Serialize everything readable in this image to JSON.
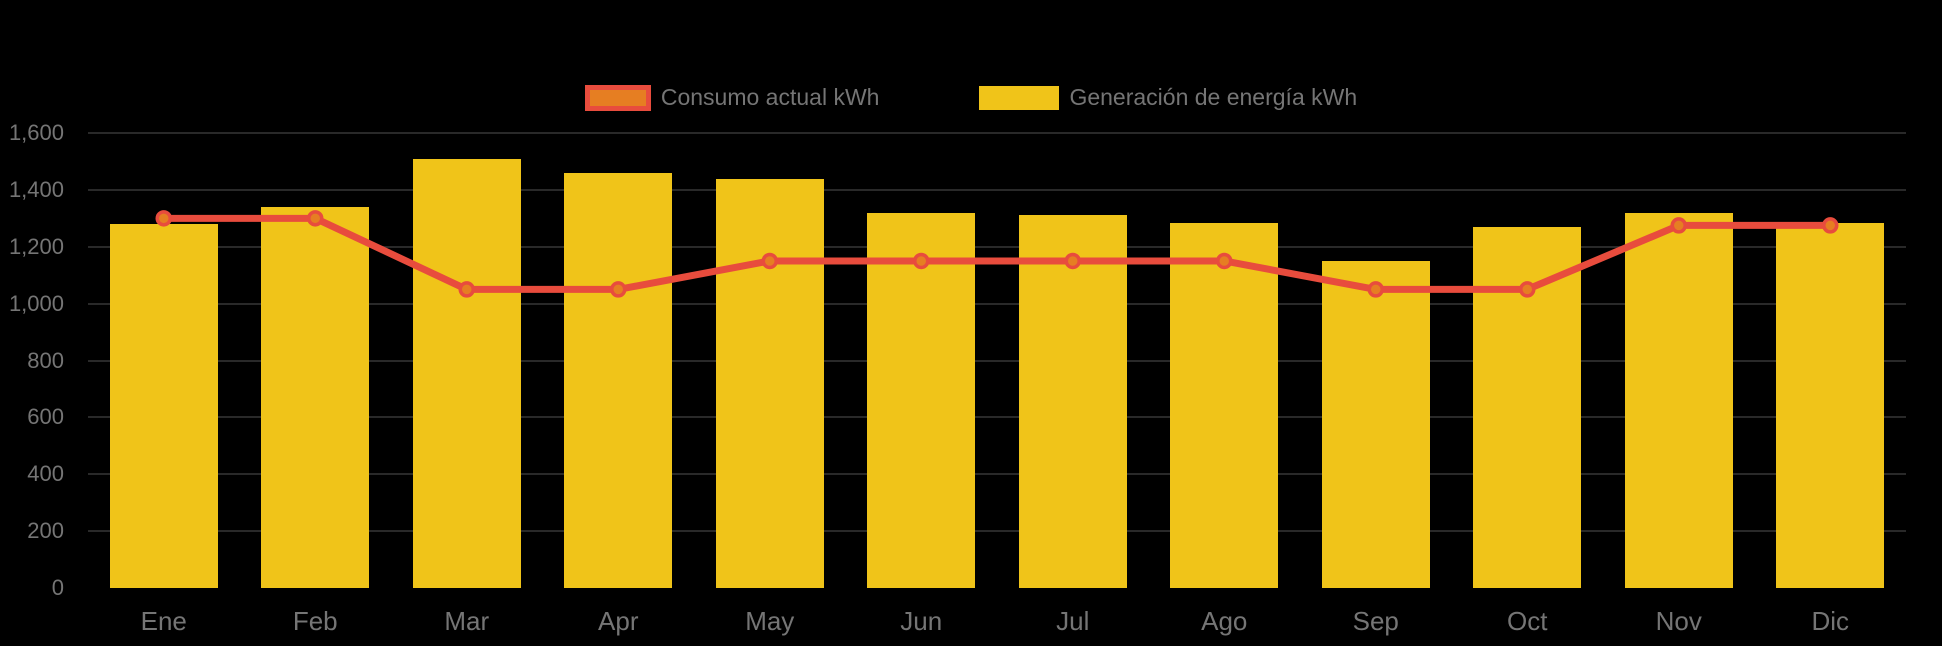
{
  "background_color": "#000000",
  "text_color": "#757575",
  "legend": {
    "position": "top-center",
    "items": [
      {
        "label": "Consumo actual kWh",
        "swatch_fill": "#E67E22",
        "swatch_border": "#E84C3D"
      },
      {
        "label": "Generación de energía kWh",
        "swatch_fill": "#F0C419",
        "swatch_border": ""
      }
    ]
  },
  "chart_data": {
    "type": "combo",
    "title": "",
    "categories": [
      "Ene",
      "Feb",
      "Mar",
      "Apr",
      "May",
      "Jun",
      "Jul",
      "Ago",
      "Sep",
      "Oct",
      "Nov",
      "Dic"
    ],
    "series": [
      {
        "name": "Generación de energía kWh",
        "type": "bar",
        "color": "#F0C419",
        "values": [
          1280,
          1340,
          1510,
          1460,
          1440,
          1320,
          1310,
          1285,
          1150,
          1270,
          1320,
          1285
        ]
      },
      {
        "name": "Consumo actual kWh",
        "type": "line",
        "color": "#E84C3D",
        "marker_fill": "#E67E22",
        "values": [
          1300,
          1300,
          1050,
          1050,
          1150,
          1150,
          1150,
          1150,
          1050,
          1050,
          1275,
          1275
        ]
      }
    ],
    "xlabel": "",
    "ylabel": "",
    "ylim": [
      0,
      1600
    ],
    "ytick_step": 200,
    "ytick_labels": [
      "0",
      "200",
      "400",
      "600",
      "800",
      "1,000",
      "1,200",
      "1,400",
      "1,600"
    ],
    "grid": "faint horizontal gridlines at each y tick",
    "legend_position": "top-center"
  }
}
